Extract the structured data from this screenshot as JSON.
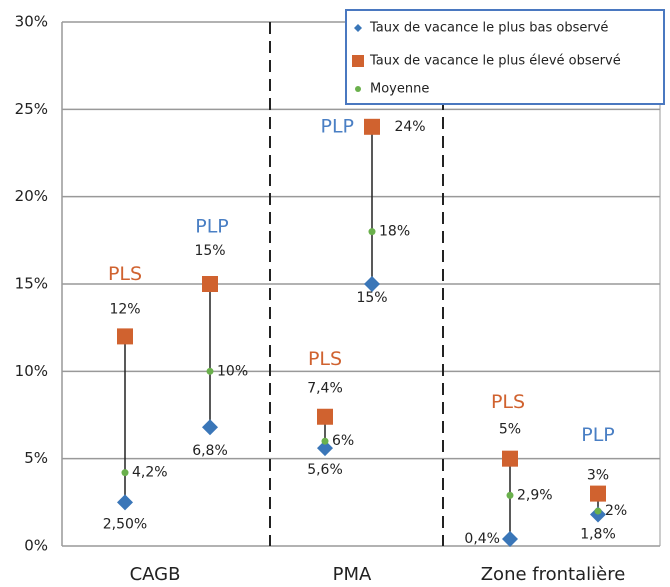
{
  "chart_data": {
    "type": "range",
    "groups": [
      "CAGB",
      "PMA",
      "Zone frontalière"
    ],
    "categories": [
      "PLS",
      "PLP",
      "PLS",
      "PLP",
      "PLS",
      "PLP"
    ],
    "category_colors": [
      "#d0622f",
      "#4a7fc4",
      "#d0622f",
      "#4a7fc4",
      "#d0622f",
      "#4a7fc4"
    ],
    "series": [
      {
        "name": "Taux de vacance le plus bas observé",
        "color": "#3a76b8",
        "marker": "diamond",
        "values": [
          2.5,
          6.8,
          5.6,
          15,
          0.4,
          1.8
        ],
        "value_labels": [
          "2,50%",
          "6,8%",
          "5,6%",
          "15%",
          "0,4%",
          "1,8%"
        ]
      },
      {
        "name": "Taux de vacance le plus élevé observé",
        "color": "#d0622f",
        "marker": "square",
        "values": [
          12,
          15,
          7.4,
          24,
          5,
          3
        ],
        "value_labels": [
          "12%",
          "15%",
          "7,4%",
          "24%",
          "5%",
          "3%"
        ]
      },
      {
        "name": "Moyenne",
        "color": "#6ab04c",
        "marker": "circle",
        "values": [
          4.2,
          10,
          6,
          18,
          2.9,
          2
        ],
        "value_labels": [
          "4,2%",
          "10%",
          "6%",
          "18%",
          "2,9%",
          "2%"
        ]
      }
    ],
    "ylim": [
      0,
      30
    ],
    "yticks": [
      {
        "value": 0,
        "label": "0%"
      },
      {
        "value": 5,
        "label": "5%"
      },
      {
        "value": 10,
        "label": "10%"
      },
      {
        "value": 15,
        "label": "15%"
      },
      {
        "value": 20,
        "label": "20%"
      },
      {
        "value": 25,
        "label": "25%"
      },
      {
        "value": 30,
        "label": "30%"
      }
    ],
    "grid": true
  }
}
